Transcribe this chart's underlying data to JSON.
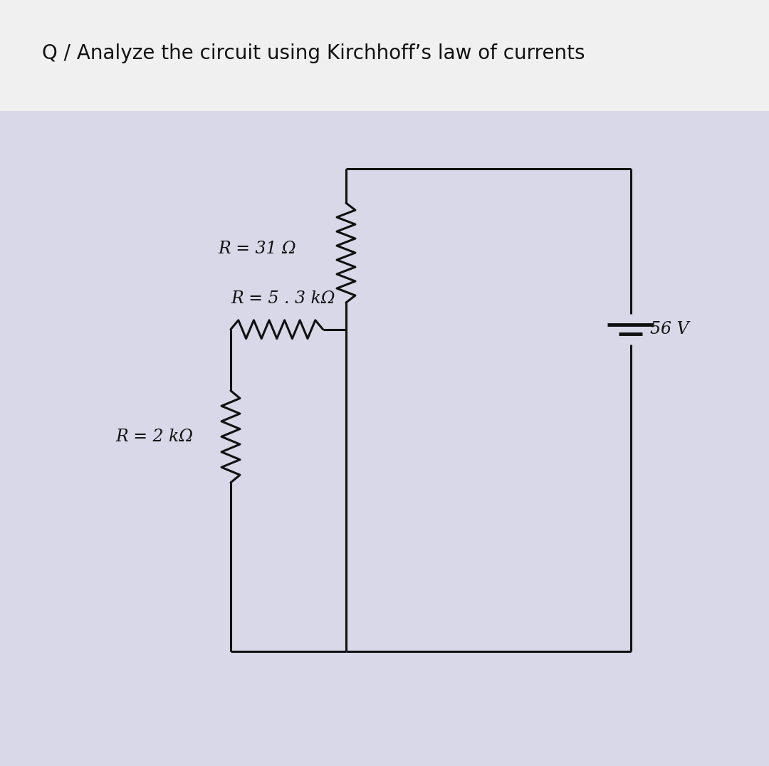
{
  "title": "Q / Analyze the circuit using Kirchhoff’s law of currents",
  "title_fontsize": 20,
  "bg_color": "#d8d8e8",
  "header_color": "#f0f0f0",
  "line_color": "#111111",
  "line_width": 2.2,
  "label_R1": "R = 31 Ω",
  "label_R2": "R = 5 . 3 kΩ",
  "label_R3": "R = 2 kΩ",
  "label_V": "56 V",
  "font_size_labels": 17,
  "zigzag_amp": 0.12
}
